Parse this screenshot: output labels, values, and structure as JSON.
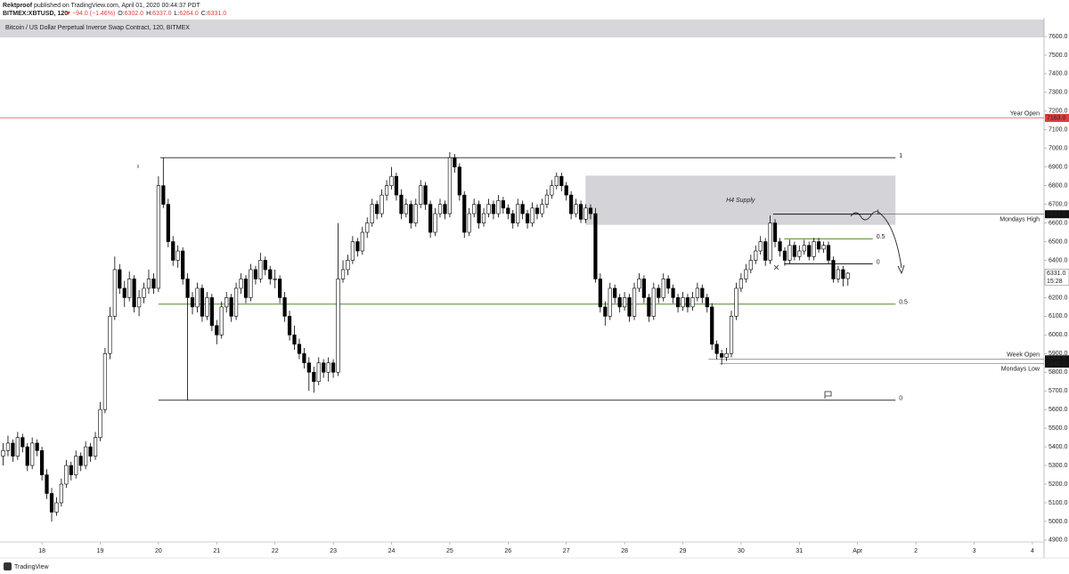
{
  "header": {
    "author": "Rektproof",
    "published": "published on TradingView.com, April 01, 2020 00:44:37 PDT",
    "symbol": "BITMEX:XBTUSD, 120",
    "change": "−94.0 (−1.46%)",
    "ohlc": [
      {
        "key": "O:",
        "value": "6302.0"
      },
      {
        "key": "H:",
        "value": "6337.0"
      },
      {
        "key": "L:",
        "value": "6264.0"
      },
      {
        "key": "C:",
        "value": "6331.0"
      }
    ]
  },
  "chart_data": {
    "type": "candlestick",
    "title": "Bitcoin / US Dollar Perpetual Inverse Swap Contract, 120, BITMEX",
    "up_color": "#ffffff",
    "down_color": "#000000",
    "grid": false,
    "xlim": [
      17.28,
      35.2
    ],
    "xticks": [
      18,
      19,
      20,
      21,
      22,
      23,
      24,
      25,
      26,
      27,
      28,
      29,
      30,
      31,
      {
        "value": 32,
        "label": "Apr"
      },
      {
        "value": 33,
        "label": "2"
      },
      {
        "value": 34,
        "label": "3"
      },
      {
        "value": 35,
        "label": "4"
      }
    ],
    "ylim": [
      4890,
      7700
    ],
    "yticks": [
      {
        "value": 4900,
        "label": "4900.0"
      },
      {
        "value": 5000,
        "label": "5000.0"
      },
      {
        "value": 5100,
        "label": "5100.0"
      },
      {
        "value": 5200,
        "label": "5200.0"
      },
      {
        "value": 5300,
        "label": "5300.0"
      },
      {
        "value": 5400,
        "label": "5400.0"
      },
      {
        "value": 5500,
        "label": "5500.0"
      },
      {
        "value": 5600,
        "label": "5600.0"
      },
      {
        "value": 5700,
        "label": "5700.0"
      },
      {
        "value": 5800,
        "label": "5800.0"
      },
      {
        "value": 5900,
        "label": "5900.0"
      },
      {
        "value": 6000,
        "label": "6000.0"
      },
      {
        "value": 6100,
        "label": "6100.0"
      },
      {
        "value": 6200,
        "label": "6200.0"
      },
      {
        "value": 6300,
        "label": "6300.0"
      },
      {
        "value": 6400,
        "label": "6400.0"
      },
      {
        "value": 6500,
        "label": "6500.0"
      },
      {
        "value": 6600,
        "label": "6600.0"
      },
      {
        "value": 6700,
        "label": "6700.0"
      },
      {
        "value": 6800,
        "label": "6800.0"
      },
      {
        "value": 6900,
        "label": "6900.0"
      },
      {
        "value": 7000,
        "label": "7000.0"
      },
      {
        "value": 7100,
        "label": "7100.0"
      },
      {
        "value": 7200,
        "label": "7200.0"
      },
      {
        "value": 7300,
        "label": "7300.0"
      },
      {
        "value": 7400,
        "label": "7400.0"
      },
      {
        "value": 7500,
        "label": "7500.0"
      },
      {
        "value": 7600,
        "label": "7600.0"
      }
    ],
    "x": [
      17.333,
      17.417,
      17.5,
      17.583,
      17.667,
      17.75,
      17.833,
      17.917,
      18,
      18.083,
      18.167,
      18.25,
      18.333,
      18.417,
      18.5,
      18.583,
      18.667,
      18.75,
      18.833,
      18.917,
      19,
      19.083,
      19.167,
      19.25,
      19.333,
      19.417,
      19.5,
      19.583,
      19.667,
      19.75,
      19.833,
      19.917,
      20,
      20.083,
      20.167,
      20.25,
      20.333,
      20.417,
      20.5,
      20.583,
      20.667,
      20.75,
      20.833,
      20.917,
      21,
      21.083,
      21.167,
      21.25,
      21.333,
      21.417,
      21.5,
      21.583,
      21.667,
      21.75,
      21.833,
      21.917,
      22,
      22.083,
      22.167,
      22.25,
      22.333,
      22.417,
      22.5,
      22.583,
      22.667,
      22.75,
      22.833,
      22.917,
      23,
      23.083,
      23.167,
      23.25,
      23.333,
      23.417,
      23.5,
      23.583,
      23.667,
      23.75,
      23.833,
      23.917,
      24,
      24.083,
      24.167,
      24.25,
      24.333,
      24.417,
      24.5,
      24.583,
      24.667,
      24.75,
      24.833,
      24.917,
      25,
      25.083,
      25.167,
      25.25,
      25.333,
      25.417,
      25.5,
      25.583,
      25.667,
      25.75,
      25.833,
      25.917,
      26,
      26.083,
      26.167,
      26.25,
      26.333,
      26.417,
      26.5,
      26.583,
      26.667,
      26.75,
      26.833,
      26.917,
      27,
      27.083,
      27.167,
      27.25,
      27.333,
      27.417,
      27.5,
      27.583,
      27.667,
      27.75,
      27.833,
      27.917,
      28,
      28.083,
      28.167,
      28.25,
      28.333,
      28.417,
      28.5,
      28.583,
      28.667,
      28.75,
      28.833,
      28.917,
      29,
      29.083,
      29.167,
      29.25,
      29.333,
      29.417,
      29.5,
      29.583,
      29.667,
      29.75,
      29.833,
      29.917,
      30,
      30.083,
      30.167,
      30.25,
      30.333,
      30.417,
      30.5,
      30.583,
      30.667,
      30.75,
      30.833,
      30.917,
      31,
      31.083,
      31.167,
      31.25,
      31.333,
      31.417,
      31.5,
      31.583,
      31.667,
      31.75,
      31.833
    ],
    "ohlc": [
      [
        5350,
        5420,
        5300,
        5380
      ],
      [
        5380,
        5460,
        5350,
        5420
      ],
      [
        5420,
        5440,
        5320,
        5350
      ],
      [
        5350,
        5480,
        5330,
        5450
      ],
      [
        5450,
        5470,
        5370,
        5400
      ],
      [
        5400,
        5420,
        5270,
        5300
      ],
      [
        5300,
        5450,
        5280,
        5420
      ],
      [
        5420,
        5440,
        5350,
        5380
      ],
      [
        5380,
        5400,
        5220,
        5250
      ],
      [
        5250,
        5280,
        5120,
        5150
      ],
      [
        5150,
        5180,
        5000,
        5050
      ],
      [
        5050,
        5130,
        5030,
        5100
      ],
      [
        5100,
        5230,
        5080,
        5200
      ],
      [
        5200,
        5330,
        5180,
        5300
      ],
      [
        5300,
        5320,
        5220,
        5250
      ],
      [
        5250,
        5380,
        5230,
        5350
      ],
      [
        5350,
        5370,
        5270,
        5300
      ],
      [
        5300,
        5430,
        5280,
        5400
      ],
      [
        5400,
        5420,
        5320,
        5350
      ],
      [
        5350,
        5480,
        5330,
        5450
      ],
      [
        5450,
        5640,
        5430,
        5600
      ],
      [
        5600,
        5930,
        5580,
        5900
      ],
      [
        5900,
        6150,
        5870,
        6100
      ],
      [
        6100,
        6420,
        6080,
        6350
      ],
      [
        6350,
        6380,
        6220,
        6250
      ],
      [
        6250,
        6290,
        6150,
        6200
      ],
      [
        6200,
        6340,
        6180,
        6300
      ],
      [
        6300,
        6320,
        6120,
        6150
      ],
      [
        6150,
        6240,
        6100,
        6200
      ],
      [
        6200,
        6280,
        6170,
        6250
      ],
      [
        6250,
        6350,
        6220,
        6300
      ],
      [
        6300,
        6330,
        6220,
        6250
      ],
      [
        6250,
        6850,
        6230,
        6800
      ],
      [
        6800,
        6950,
        6680,
        6700
      ],
      [
        6700,
        6730,
        6470,
        6500
      ],
      [
        6500,
        6530,
        6370,
        6400
      ],
      [
        6400,
        6480,
        6360,
        6450
      ],
      [
        6450,
        6470,
        6270,
        6300
      ],
      [
        6300,
        6330,
        5650,
        6200
      ],
      [
        6200,
        6230,
        6110,
        6150
      ],
      [
        6150,
        6280,
        6120,
        6250
      ],
      [
        6250,
        6270,
        6070,
        6100
      ],
      [
        6100,
        6230,
        6080,
        6200
      ],
      [
        6200,
        6220,
        6020,
        6050
      ],
      [
        6050,
        6080,
        5950,
        6000
      ],
      [
        6000,
        6180,
        5980,
        6150
      ],
      [
        6150,
        6230,
        6120,
        6200
      ],
      [
        6200,
        6220,
        6070,
        6100
      ],
      [
        6100,
        6280,
        6080,
        6250
      ],
      [
        6250,
        6330,
        6220,
        6300
      ],
      [
        6300,
        6320,
        6170,
        6200
      ],
      [
        6200,
        6380,
        6180,
        6350
      ],
      [
        6350,
        6370,
        6270,
        6300
      ],
      [
        6300,
        6440,
        6280,
        6400
      ],
      [
        6400,
        6420,
        6320,
        6350
      ],
      [
        6350,
        6370,
        6270,
        6300
      ],
      [
        6300,
        6350,
        6250,
        6300
      ],
      [
        6300,
        6320,
        6170,
        6200
      ],
      [
        6200,
        6230,
        6070,
        6100
      ],
      [
        6100,
        6130,
        5970,
        6000
      ],
      [
        6000,
        6050,
        5920,
        5950
      ],
      [
        5950,
        5980,
        5870,
        5900
      ],
      [
        5900,
        5930,
        5820,
        5850
      ],
      [
        5850,
        5880,
        5700,
        5800
      ],
      [
        5800,
        5830,
        5690,
        5750
      ],
      [
        5750,
        5880,
        5730,
        5850
      ],
      [
        5850,
        5870,
        5770,
        5800
      ],
      [
        5800,
        5880,
        5750,
        5850
      ],
      [
        5850,
        5870,
        5770,
        5800
      ],
      [
        5800,
        6600,
        5780,
        6300
      ],
      [
        6300,
        6400,
        6280,
        6350
      ],
      [
        6350,
        6430,
        6320,
        6400
      ],
      [
        6400,
        6530,
        6380,
        6500
      ],
      [
        6500,
        6520,
        6420,
        6450
      ],
      [
        6450,
        6580,
        6430,
        6550
      ],
      [
        6550,
        6630,
        6520,
        6600
      ],
      [
        6600,
        6730,
        6580,
        6700
      ],
      [
        6700,
        6720,
        6620,
        6650
      ],
      [
        6650,
        6780,
        6630,
        6750
      ],
      [
        6750,
        6830,
        6720,
        6800
      ],
      [
        6800,
        6900,
        6780,
        6850
      ],
      [
        6850,
        6870,
        6720,
        6750
      ],
      [
        6750,
        6780,
        6620,
        6650
      ],
      [
        6650,
        6730,
        6630,
        6700
      ],
      [
        6700,
        6720,
        6570,
        6600
      ],
      [
        6600,
        6730,
        6580,
        6700
      ],
      [
        6700,
        6830,
        6680,
        6800
      ],
      [
        6800,
        6820,
        6670,
        6700
      ],
      [
        6700,
        6720,
        6520,
        6550
      ],
      [
        6550,
        6680,
        6530,
        6650
      ],
      [
        6650,
        6730,
        6630,
        6700
      ],
      [
        6700,
        6720,
        6620,
        6650
      ],
      [
        6650,
        6980,
        6630,
        6950
      ],
      [
        6950,
        6970,
        6870,
        6900
      ],
      [
        6900,
        6920,
        6720,
        6750
      ],
      [
        6750,
        6770,
        6520,
        6550
      ],
      [
        6550,
        6680,
        6530,
        6650
      ],
      [
        6650,
        6730,
        6630,
        6700
      ],
      [
        6700,
        6720,
        6570,
        6600
      ],
      [
        6600,
        6680,
        6580,
        6650
      ],
      [
        6650,
        6730,
        6630,
        6700
      ],
      [
        6700,
        6720,
        6620,
        6650
      ],
      [
        6650,
        6750,
        6630,
        6720
      ],
      [
        6720,
        6740,
        6650,
        6680
      ],
      [
        6680,
        6700,
        6620,
        6650
      ],
      [
        6650,
        6670,
        6570,
        6600
      ],
      [
        6600,
        6730,
        6580,
        6700
      ],
      [
        6700,
        6720,
        6620,
        6650
      ],
      [
        6650,
        6670,
        6570,
        6600
      ],
      [
        6600,
        6710,
        6580,
        6680
      ],
      [
        6680,
        6700,
        6620,
        6650
      ],
      [
        6650,
        6730,
        6630,
        6700
      ],
      [
        6700,
        6780,
        6680,
        6750
      ],
      [
        6750,
        6830,
        6730,
        6800
      ],
      [
        6800,
        6870,
        6780,
        6850
      ],
      [
        6850,
        6870,
        6770,
        6800
      ],
      [
        6800,
        6820,
        6720,
        6750
      ],
      [
        6750,
        6770,
        6620,
        6650
      ],
      [
        6650,
        6730,
        6630,
        6700
      ],
      [
        6700,
        6720,
        6600,
        6620
      ],
      [
        6620,
        6700,
        6600,
        6680
      ],
      [
        6680,
        6700,
        6620,
        6650
      ],
      [
        6650,
        6680,
        6280,
        6300
      ],
      [
        6300,
        6330,
        6120,
        6150
      ],
      [
        6150,
        6180,
        6050,
        6100
      ],
      [
        6100,
        6280,
        6080,
        6250
      ],
      [
        6250,
        6270,
        6170,
        6200
      ],
      [
        6200,
        6220,
        6120,
        6150
      ],
      [
        6150,
        6230,
        6130,
        6200
      ],
      [
        6200,
        6220,
        6070,
        6100
      ],
      [
        6100,
        6280,
        6080,
        6250
      ],
      [
        6250,
        6330,
        6230,
        6300
      ],
      [
        6300,
        6320,
        6170,
        6200
      ],
      [
        6200,
        6220,
        6070,
        6100
      ],
      [
        6100,
        6280,
        6080,
        6250
      ],
      [
        6250,
        6270,
        6170,
        6200
      ],
      [
        6200,
        6330,
        6180,
        6300
      ],
      [
        6300,
        6320,
        6220,
        6250
      ],
      [
        6250,
        6270,
        6170,
        6200
      ],
      [
        6200,
        6220,
        6120,
        6150
      ],
      [
        6150,
        6230,
        6130,
        6200
      ],
      [
        6200,
        6220,
        6120,
        6150
      ],
      [
        6150,
        6230,
        6130,
        6200
      ],
      [
        6200,
        6280,
        6180,
        6250
      ],
      [
        6250,
        6270,
        6170,
        6200
      ],
      [
        6200,
        6220,
        6120,
        6150
      ],
      [
        6150,
        6170,
        5920,
        5950
      ],
      [
        5950,
        5970,
        5870,
        5900
      ],
      [
        5900,
        5920,
        5840,
        5880
      ],
      [
        5880,
        5930,
        5860,
        5900
      ],
      [
        5900,
        6130,
        5880,
        6100
      ],
      [
        6100,
        6280,
        6080,
        6250
      ],
      [
        6250,
        6330,
        6230,
        6300
      ],
      [
        6300,
        6380,
        6280,
        6350
      ],
      [
        6350,
        6430,
        6330,
        6400
      ],
      [
        6400,
        6480,
        6380,
        6450
      ],
      [
        6450,
        6530,
        6430,
        6500
      ],
      [
        6500,
        6520,
        6370,
        6400
      ],
      [
        6400,
        6640,
        6380,
        6600
      ],
      [
        6600,
        6620,
        6470,
        6500
      ],
      [
        6500,
        6520,
        6420,
        6450
      ],
      [
        6450,
        6470,
        6370,
        6400
      ],
      [
        6400,
        6510,
        6380,
        6480
      ],
      [
        6480,
        6500,
        6400,
        6420
      ],
      [
        6420,
        6480,
        6400,
        6450
      ],
      [
        6450,
        6510,
        6430,
        6480
      ],
      [
        6480,
        6500,
        6400,
        6420
      ],
      [
        6420,
        6520,
        6400,
        6500
      ],
      [
        6500,
        6520,
        6440,
        6460
      ],
      [
        6460,
        6500,
        6440,
        6480
      ],
      [
        6480,
        6500,
        6380,
        6400
      ],
      [
        6400,
        6420,
        6280,
        6300
      ],
      [
        6300,
        6370,
        6280,
        6350
      ],
      [
        6350,
        6370,
        6260,
        6302
      ],
      [
        6302,
        6337,
        6264,
        6331
      ]
    ],
    "fib_lines": [
      {
        "value": 6950,
        "label": "1",
        "color": "#222222",
        "x": [
          20.03,
          32.65
        ]
      },
      {
        "value": 5650,
        "label": "0",
        "color": "#222222",
        "x": [
          20.0,
          32.65
        ]
      },
      {
        "value": 6165,
        "label": "0.5",
        "color": "#4c8c2b",
        "x": [
          20.0,
          32.65
        ]
      },
      {
        "value": 6647,
        "label": "1",
        "color": "#000000",
        "x": [
          30.55,
          32.26
        ]
      },
      {
        "value": 6515,
        "label": "0.5",
        "color": "#4c8c2b",
        "x": [
          30.74,
          32.26
        ]
      },
      {
        "value": 6381,
        "label": "0",
        "color": "#000000",
        "x": [
          30.74,
          32.26
        ]
      }
    ],
    "zones": [
      {
        "label": "H4 Supply",
        "y": [
          6590,
          6854
        ],
        "x": [
          27.33,
          32.65
        ],
        "color": "#d4d4d8"
      }
    ],
    "levels": [
      {
        "name": "Year Open",
        "value": 7163,
        "label": "7163.0",
        "color": "#e03c3c",
        "label_side": "above"
      },
      {
        "name": "Mondays High",
        "value": 6647,
        "label": "6647.0",
        "color": "#111111",
        "x_start": 30.55,
        "label_side": "below"
      },
      {
        "name": "Week Open",
        "value": 5869,
        "label": "5869.0",
        "color": "#111111",
        "x_start": 29.44,
        "label_side": "above"
      },
      {
        "name": "Mondays Low",
        "value": 5846,
        "label": "5846.0",
        "color": "#111111",
        "x_start": 29.63,
        "label_side": "below"
      }
    ],
    "price_label": {
      "value": 6331,
      "label": "6331.0",
      "countdown": "15:28"
    }
  },
  "footer": {
    "brand": "TradingView"
  }
}
